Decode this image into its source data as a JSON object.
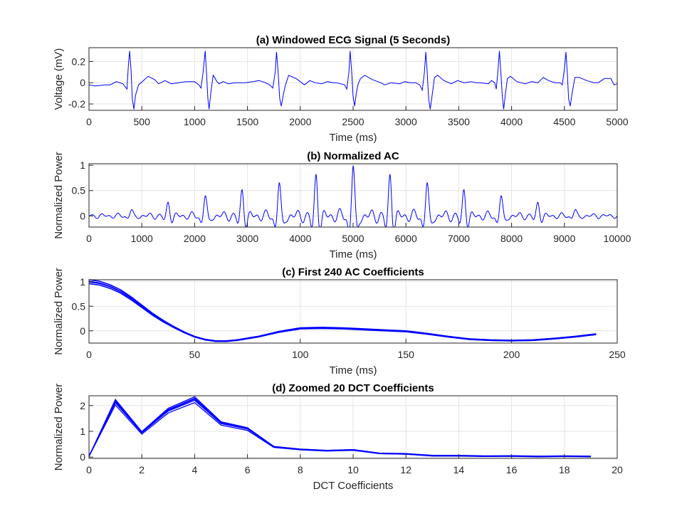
{
  "chart_data": [
    {
      "type": "line",
      "title": "(a) Windowed ECG Signal (5 Seconds)",
      "xlabel": "Time (ms)",
      "ylabel": "Voltage (mV)",
      "xlim": [
        0,
        5000
      ],
      "ylim": [
        -0.26,
        0.33
      ],
      "xticks": [
        "0",
        "500",
        "1000",
        "1500",
        "2000",
        "2500",
        "3000",
        "3500",
        "4000",
        "4500",
        "5000"
      ],
      "yticks": [
        "-0.2",
        "0",
        "0.2"
      ],
      "grid": true,
      "color": "#0000ff",
      "series": [
        {
          "x": [
            0,
            60,
            150,
            200,
            260,
            320,
            360,
            372,
            385,
            398,
            410,
            425,
            440,
            470,
            560,
            620,
            660,
            720,
            780,
            850,
            920,
            1000,
            1040,
            1060,
            1080,
            1100,
            1113,
            1125,
            1137,
            1150,
            1163,
            1175,
            1190,
            1205,
            1230,
            1270,
            1320,
            1380,
            1420,
            1480,
            1550,
            1610,
            1670,
            1710,
            1740,
            1763,
            1775,
            1790,
            1805,
            1820,
            1838,
            1860,
            1890,
            1960,
            2040,
            2090,
            2140,
            2200,
            2260,
            2310,
            2340,
            2380,
            2420,
            2440,
            2460,
            2472,
            2485,
            2500,
            2515,
            2530,
            2545,
            2570,
            2610,
            2680,
            2760,
            2800,
            2860,
            2940,
            2990,
            3040,
            3090,
            3130,
            3155,
            3175,
            3188,
            3200,
            3215,
            3230,
            3248,
            3270,
            3300,
            3360,
            3430,
            3490,
            3550,
            3620,
            3660,
            3700,
            3780,
            3810,
            3840,
            3855,
            3870,
            3885,
            3898,
            3912,
            3925,
            3940,
            3960,
            3990,
            4050,
            4130,
            4190,
            4250,
            4300,
            4350,
            4410,
            4460,
            4480,
            4503,
            4515,
            4528,
            4540,
            4555,
            4573,
            4600,
            4640,
            4710,
            4780,
            4820,
            4880,
            4940,
            4970,
            4995,
            5000
          ],
          "y": [
            -0.02,
            -0.03,
            -0.02,
            -0.02,
            0.01,
            -0.01,
            -0.06,
            0.15,
            0.3,
            0.12,
            -0.15,
            -0.25,
            -0.12,
            -0.02,
            0.06,
            0.03,
            -0.01,
            0.02,
            -0.01,
            0.0,
            0.01,
            0.01,
            -0.02,
            -0.05,
            0.1,
            0.3,
            0.08,
            -0.15,
            -0.25,
            -0.12,
            -0.02,
            0.07,
            0.05,
            0.02,
            -0.01,
            0.01,
            -0.01,
            0.0,
            0.0,
            0.0,
            0.01,
            0.02,
            0.0,
            -0.02,
            -0.05,
            0.1,
            0.29,
            0.11,
            -0.15,
            -0.22,
            -0.12,
            -0.02,
            0.07,
            0.04,
            -0.02,
            0.02,
            0.0,
            -0.01,
            0.01,
            0.0,
            0.0,
            -0.01,
            -0.02,
            -0.06,
            0.1,
            0.3,
            0.12,
            -0.13,
            -0.22,
            -0.1,
            -0.02,
            0.04,
            0.07,
            0.03,
            0.0,
            -0.02,
            0.0,
            -0.01,
            0.01,
            0.0,
            0.0,
            -0.02,
            -0.07,
            0.1,
            0.29,
            0.12,
            -0.15,
            -0.25,
            -0.12,
            0.05,
            0.07,
            0.02,
            -0.01,
            0.02,
            0.0,
            0.01,
            0.0,
            0.0,
            -0.01,
            0.02,
            0.0,
            -0.06,
            0.1,
            0.3,
            0.1,
            -0.12,
            -0.25,
            -0.12,
            0.04,
            0.06,
            0.01,
            -0.01,
            0.01,
            0.0,
            0.05,
            0.02,
            0.0,
            0.0,
            -0.02,
            0.15,
            0.29,
            0.08,
            -0.15,
            -0.22,
            -0.1,
            0.05,
            0.05,
            0.02,
            0.0,
            0.0,
            0.04,
            0.04,
            -0.02,
            -0.01,
            -0.01
          ]
        }
      ]
    },
    {
      "type": "line",
      "title": "(b) Normalized AC",
      "xlabel": "Time (ms)",
      "ylabel": "Normalized Power",
      "xlim": [
        0,
        10000
      ],
      "ylim": [
        -0.22,
        1.03
      ],
      "xticks": [
        "0",
        "1000",
        "2000",
        "3000",
        "4000",
        "5000",
        "6000",
        "7000",
        "8000",
        "9000",
        "10000"
      ],
      "yticks": [
        "0",
        "0.5",
        "1"
      ],
      "grid": true,
      "color": "#0000ff",
      "peaks": [
        {
          "x": 800,
          "h": 0.12
        },
        {
          "x": 1500,
          "h": 0.27
        },
        {
          "x": 2200,
          "h": 0.4
        },
        {
          "x": 2900,
          "h": 0.52
        },
        {
          "x": 3600,
          "h": 0.66
        },
        {
          "x": 4300,
          "h": 0.83
        },
        {
          "x": 5000,
          "h": 1.0
        },
        {
          "x": 5700,
          "h": 0.83
        },
        {
          "x": 6400,
          "h": 0.66
        },
        {
          "x": 7100,
          "h": 0.52
        },
        {
          "x": 7800,
          "h": 0.4
        },
        {
          "x": 8500,
          "h": 0.27
        },
        {
          "x": 9200,
          "h": 0.12
        }
      ]
    },
    {
      "type": "line",
      "title": "(c) First 240 AC Coefficients",
      "xlabel": "Time (ms)",
      "ylabel": "Normalized Power",
      "xlim": [
        0,
        250
      ],
      "ylim": [
        -0.25,
        1.04
      ],
      "xticks": [
        "0",
        "50",
        "100",
        "150",
        "200",
        "250"
      ],
      "yticks": [
        "0",
        "0.5",
        "1"
      ],
      "grid": true,
      "color": "#0000ff",
      "series": [
        {
          "x": [
            0,
            5,
            10,
            15,
            20,
            25,
            30,
            35,
            40,
            45,
            50,
            55,
            60,
            65,
            70,
            80,
            90,
            100,
            110,
            120,
            130,
            140,
            150,
            160,
            170,
            180,
            190,
            200,
            210,
            220,
            230,
            240
          ],
          "y": [
            1.0,
            0.97,
            0.9,
            0.8,
            0.66,
            0.5,
            0.34,
            0.2,
            0.08,
            -0.03,
            -0.12,
            -0.18,
            -0.21,
            -0.21,
            -0.19,
            -0.12,
            -0.02,
            0.05,
            0.06,
            0.05,
            0.03,
            0.01,
            -0.01,
            -0.06,
            -0.12,
            -0.17,
            -0.19,
            -0.2,
            -0.19,
            -0.16,
            -0.12,
            -0.07
          ]
        }
      ]
    },
    {
      "type": "line",
      "title": "(d) Zoomed 20 DCT Coefficients",
      "xlabel": "DCT Coefficients",
      "ylabel": "Normalized Power",
      "xlim": [
        0,
        20
      ],
      "ylim": [
        -0.05,
        2.38
      ],
      "xticks": [
        "0",
        "2",
        "4",
        "6",
        "8",
        "10",
        "12",
        "14",
        "16",
        "18",
        "20"
      ],
      "yticks": [
        "0",
        "1",
        "2"
      ],
      "grid": true,
      "color": "#0000ff",
      "series": [
        {
          "x": [
            0,
            1,
            2,
            3,
            4,
            5,
            6,
            7,
            8,
            9,
            10,
            11,
            12,
            13,
            14,
            15,
            16,
            17,
            18,
            19
          ],
          "y": [
            0.03,
            2.15,
            0.95,
            1.82,
            2.25,
            1.32,
            1.1,
            0.4,
            0.3,
            0.25,
            0.28,
            0.14,
            0.12,
            0.05,
            0.05,
            0.03,
            0.04,
            0.02,
            0.03,
            0.02
          ]
        }
      ]
    }
  ]
}
